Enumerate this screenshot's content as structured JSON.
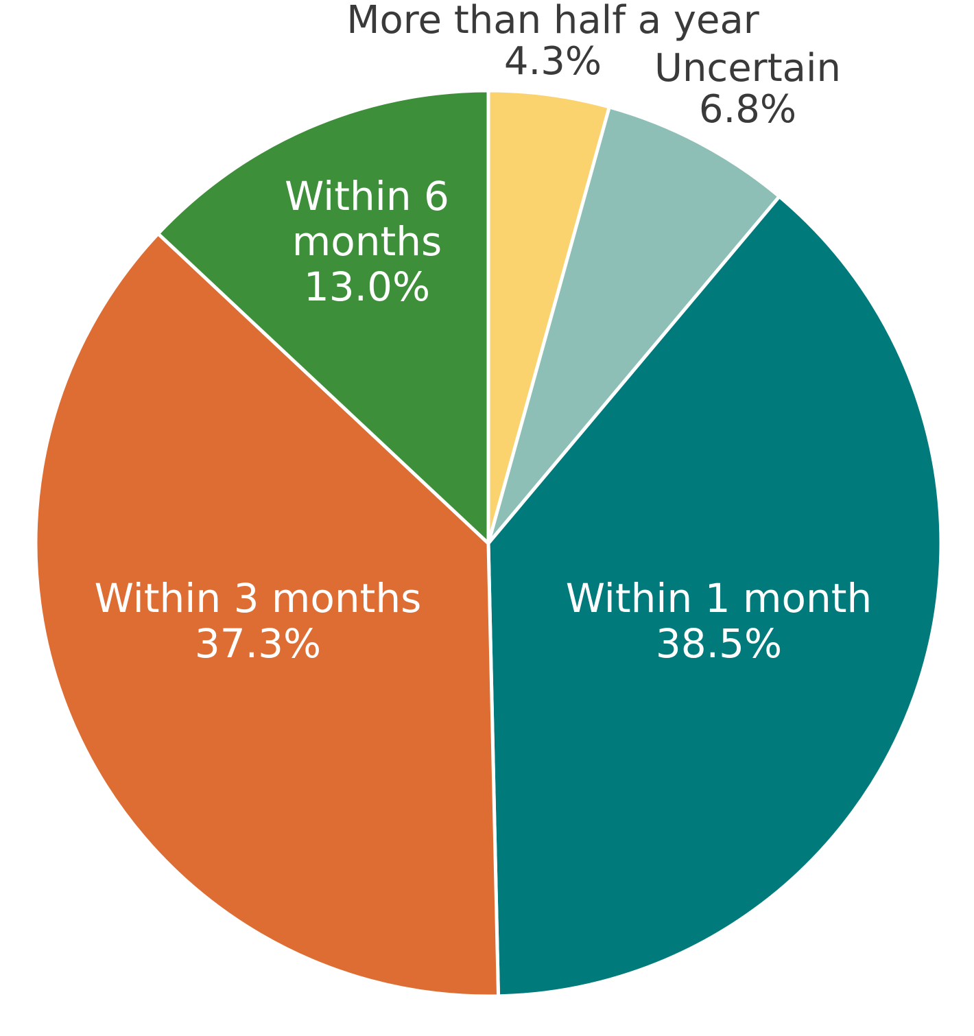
{
  "chart_data": {
    "type": "pie",
    "start": "12 o'clock",
    "direction": "clockwise",
    "slices": [
      {
        "name": "More than half a year",
        "value": 4.3,
        "label_lines": [
          "More than half a year",
          "4.3%"
        ],
        "color": "#FAD26E",
        "label_placement": "outside"
      },
      {
        "name": "Uncertain",
        "value": 6.8,
        "label_lines": [
          "Uncertain",
          "6.8%"
        ],
        "color": "#8DBFB7",
        "label_placement": "outside"
      },
      {
        "name": "Within 1 month",
        "value": 38.5,
        "label_lines": [
          "Within 1 month",
          "38.5%"
        ],
        "color": "#007A7B",
        "label_placement": "inside"
      },
      {
        "name": "Within 3 months",
        "value": 37.3,
        "label_lines": [
          "Within 3 months",
          "37.3%"
        ],
        "color": "#DE6D33",
        "label_placement": "inside"
      },
      {
        "name": "Within 6 months",
        "value": 13.0,
        "label_lines": [
          "Within 6",
          "months",
          "13.0%"
        ],
        "color": "#3D8F3A",
        "label_placement": "inside"
      }
    ]
  }
}
